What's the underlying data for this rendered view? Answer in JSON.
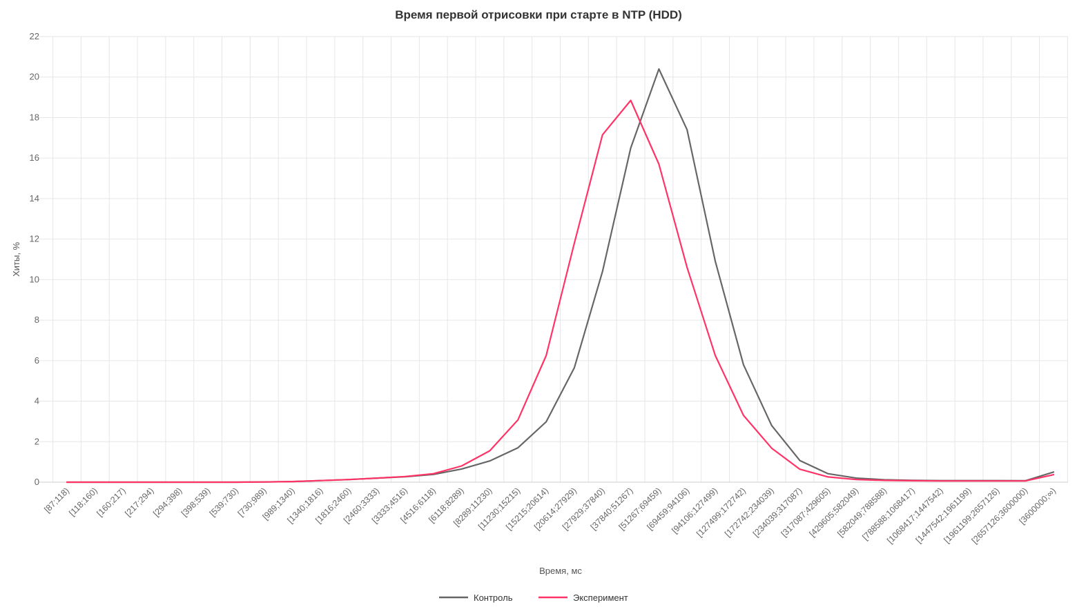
{
  "chart_data": {
    "type": "line",
    "title": "Время первой отрисовки при старте в NTP (HDD)",
    "xlabel": "Время, мс",
    "ylabel": "Хиты, %",
    "ylim": [
      0,
      22
    ],
    "yticks": [
      0,
      2,
      4,
      6,
      8,
      10,
      12,
      14,
      16,
      18,
      20,
      22
    ],
    "grid": true,
    "legend_position": "bottom-center",
    "categories": [
      "[87;118)",
      "[118;160)",
      "[160;217)",
      "[217;294)",
      "[294;398)",
      "[398;539)",
      "[539;730)",
      "[730;989)",
      "[989;1340)",
      "[1340;1816)",
      "[1816;2460)",
      "[2460;3333)",
      "[3333;4516)",
      "[4516;6118)",
      "[6118;8289)",
      "[8289;11230)",
      "[11230;15215)",
      "[15215;20614)",
      "[20614;27929)",
      "[27929;37840)",
      "[37840;51267)",
      "[51267;69459)",
      "[69459;94106)",
      "[94106;127499)",
      "[127499;172742)",
      "[172742;234039)",
      "[234039;317087)",
      "[317087;429605)",
      "[429605;582049)",
      "[582049;788588)",
      "[788588;1068417)",
      "[1068417;1447542)",
      "[1447542;1961199)",
      "[1961199;2657126)",
      "[2657126;3600000)",
      "[3600000;∞)"
    ],
    "series": [
      {
        "name": "Контроль",
        "color": "#666666",
        "values": [
          0,
          0,
          0,
          0,
          0,
          0,
          0,
          0.01,
          0.03,
          0.08,
          0.13,
          0.2,
          0.27,
          0.38,
          0.65,
          1.05,
          1.7,
          2.98,
          5.65,
          10.4,
          16.5,
          20.4,
          17.4,
          10.9,
          5.8,
          2.8,
          1.07,
          0.42,
          0.2,
          0.12,
          0.09,
          0.08,
          0.08,
          0.08,
          0.07,
          0.5
        ]
      },
      {
        "name": "Эксперимент",
        "color": "#ff3366",
        "values": [
          0,
          0,
          0,
          0,
          0,
          0,
          0,
          0.01,
          0.03,
          0.08,
          0.13,
          0.2,
          0.28,
          0.42,
          0.8,
          1.55,
          3.08,
          6.25,
          11.8,
          17.15,
          18.85,
          15.7,
          10.6,
          6.25,
          3.3,
          1.68,
          0.64,
          0.26,
          0.13,
          0.09,
          0.07,
          0.06,
          0.06,
          0.06,
          0.06,
          0.37
        ]
      }
    ]
  }
}
